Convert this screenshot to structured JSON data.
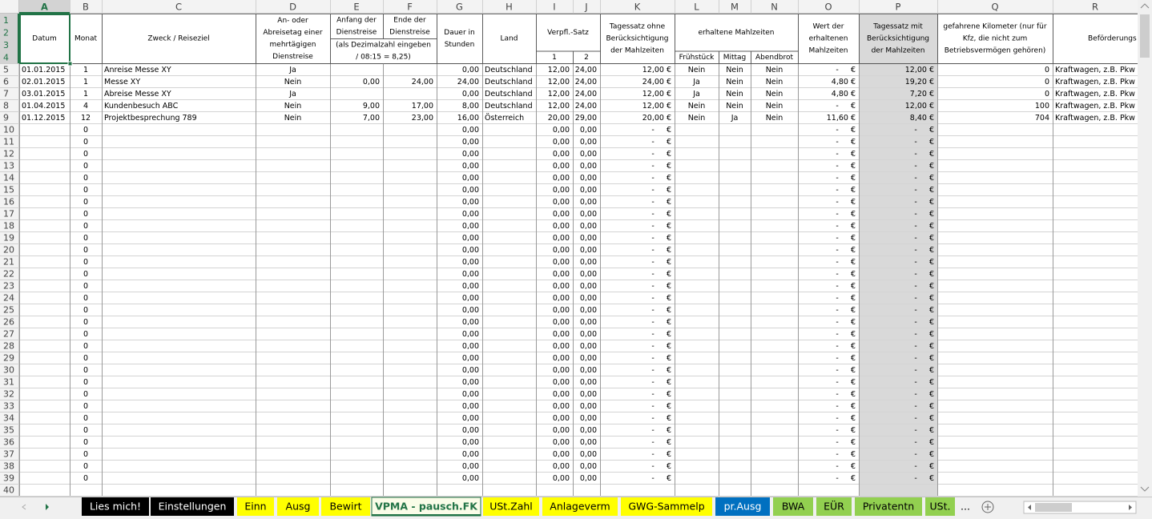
{
  "columns": [
    "A",
    "B",
    "C",
    "D",
    "E",
    "F",
    "G",
    "H",
    "I",
    "J",
    "K",
    "L",
    "M",
    "N",
    "O",
    "P",
    "Q",
    "R"
  ],
  "row_numbers": [
    1,
    2,
    3,
    4,
    5,
    6,
    7,
    8,
    9,
    10,
    11,
    12,
    13,
    14,
    15,
    16,
    17,
    18,
    19,
    20,
    21,
    22,
    23,
    24,
    25,
    26,
    27,
    28,
    29,
    30,
    31,
    32,
    33,
    34,
    35,
    36,
    37,
    38,
    39,
    40
  ],
  "header": {
    "A": [
      "Datum"
    ],
    "B": [
      "Monat"
    ],
    "C": [
      "Zweck / Reiseziel"
    ],
    "D": [
      "An- oder",
      "Abreisetag einer",
      "mehrtägigen",
      "Dienstreise"
    ],
    "E": [
      "Anfang der",
      "Dienstreise"
    ],
    "F": [
      "Ende der",
      "Dienstreise"
    ],
    "EF": [
      "(als Dezimalzahl eingeben",
      "/ 08:15 = 8,25)"
    ],
    "G": [
      "Dauer in",
      "Stunden"
    ],
    "H": [
      "Land"
    ],
    "IJ": [
      "Verpfl.-Satz"
    ],
    "I": [
      "1"
    ],
    "J": [
      "2"
    ],
    "K": [
      "Tagessatz ohne",
      "Berücksichtigung",
      "der Mahlzeiten"
    ],
    "LN": [
      "erhaltene Mahlzeiten"
    ],
    "L": [
      "Frühstück"
    ],
    "M": [
      "Mittag"
    ],
    "N": [
      "Abendbrot"
    ],
    "O": [
      "Wert der",
      "erhaltenen",
      "Mahlzeiten"
    ],
    "P": [
      "Tagessatz mit",
      "Berücksichtigung",
      "der Mahlzeiten"
    ],
    "Q": [
      "gefahrene Kilometer (nur für",
      "Kfz, die nicht zum",
      "Betriebsvermögen gehören)"
    ],
    "R": [
      "Beförderungs"
    ]
  },
  "rows": [
    {
      "A": "01.01.2015",
      "B": "1",
      "C": "Anreise Messe XY",
      "D": "Ja",
      "G": "0,00",
      "H": "Deutschland",
      "I": "12,00",
      "J": "24,00",
      "K": "12,00 €",
      "L": "Nein",
      "M": "Nein",
      "N": "Nein",
      "O": "-     €",
      "P": "12,00 €",
      "Q": "0",
      "R": "Kraftwagen, z.B. Pkw"
    },
    {
      "A": "02.01.2015",
      "B": "1",
      "C": "Messe XY",
      "D": "Nein",
      "E": "0,00",
      "F": "24,00",
      "G": "24,00",
      "H": "Deutschland",
      "I": "12,00",
      "J": "24,00",
      "K": "24,00 €",
      "L": "Ja",
      "M": "Nein",
      "N": "Nein",
      "O": "4,80 €",
      "P": "19,20 €",
      "Q": "0",
      "R": "Kraftwagen, z.B. Pkw"
    },
    {
      "A": "03.01.2015",
      "B": "1",
      "C": "Abreise Messe XY",
      "D": "Ja",
      "G": "0,00",
      "H": "Deutschland",
      "I": "12,00",
      "J": "24,00",
      "K": "12,00 €",
      "L": "Ja",
      "M": "Nein",
      "N": "Nein",
      "O": "4,80 €",
      "P": "7,20 €",
      "Q": "0",
      "R": "Kraftwagen, z.B. Pkw"
    },
    {
      "A": "01.04.2015",
      "B": "4",
      "C": "Kundenbesuch ABC",
      "D": "Nein",
      "E": "9,00",
      "F": "17,00",
      "G": "8,00",
      "H": "Deutschland",
      "I": "12,00",
      "J": "24,00",
      "K": "12,00 €",
      "L": "Nein",
      "M": "Nein",
      "N": "Nein",
      "O": "-     €",
      "P": "12,00 €",
      "Q": "100",
      "R": "Kraftwagen, z.B. Pkw"
    },
    {
      "A": "01.12.2015",
      "B": "12",
      "C": "Projektbesprechung 789",
      "D": "Nein",
      "E": "7,00",
      "F": "23,00",
      "G": "16,00",
      "H": "Österreich",
      "I": "20,00",
      "J": "29,00",
      "K": "20,00 €",
      "L": "Nein",
      "M": "Ja",
      "N": "Nein",
      "O": "11,60 €",
      "P": "8,40 €",
      "Q": "704",
      "R": "Kraftwagen, z.B. Pkw"
    },
    {
      "B": "0",
      "G": "0,00",
      "I": "0,00",
      "J": "0,00",
      "K": "-     €",
      "O": "-     €",
      "P": "-     €"
    },
    {
      "B": "0",
      "G": "0,00",
      "I": "0,00",
      "J": "0,00",
      "K": "-     €",
      "O": "-     €",
      "P": "-     €"
    },
    {
      "B": "0",
      "G": "0,00",
      "I": "0,00",
      "J": "0,00",
      "K": "-     €",
      "O": "-     €",
      "P": "-     €"
    },
    {
      "B": "0",
      "G": "0,00",
      "I": "0,00",
      "J": "0,00",
      "K": "-     €",
      "O": "-     €",
      "P": "-     €"
    },
    {
      "B": "0",
      "G": "0,00",
      "I": "0,00",
      "J": "0,00",
      "K": "-     €",
      "O": "-     €",
      "P": "-     €"
    },
    {
      "B": "0",
      "G": "0,00",
      "I": "0,00",
      "J": "0,00",
      "K": "-     €",
      "O": "-     €",
      "P": "-     €"
    },
    {
      "B": "0",
      "G": "0,00",
      "I": "0,00",
      "J": "0,00",
      "K": "-     €",
      "O": "-     €",
      "P": "-     €"
    },
    {
      "B": "0",
      "G": "0,00",
      "I": "0,00",
      "J": "0,00",
      "K": "-     €",
      "O": "-     €",
      "P": "-     €"
    },
    {
      "B": "0",
      "G": "0,00",
      "I": "0,00",
      "J": "0,00",
      "K": "-     €",
      "O": "-     €",
      "P": "-     €"
    },
    {
      "B": "0",
      "G": "0,00",
      "I": "0,00",
      "J": "0,00",
      "K": "-     €",
      "O": "-     €",
      "P": "-     €"
    },
    {
      "B": "0",
      "G": "0,00",
      "I": "0,00",
      "J": "0,00",
      "K": "-     €",
      "O": "-     €",
      "P": "-     €"
    },
    {
      "B": "0",
      "G": "0,00",
      "I": "0,00",
      "J": "0,00",
      "K": "-     €",
      "O": "-     €",
      "P": "-     €"
    },
    {
      "B": "0",
      "G": "0,00",
      "I": "0,00",
      "J": "0,00",
      "K": "-     €",
      "O": "-     €",
      "P": "-     €"
    },
    {
      "B": "0",
      "G": "0,00",
      "I": "0,00",
      "J": "0,00",
      "K": "-     €",
      "O": "-     €",
      "P": "-     €"
    },
    {
      "B": "0",
      "G": "0,00",
      "I": "0,00",
      "J": "0,00",
      "K": "-     €",
      "O": "-     €",
      "P": "-     €"
    },
    {
      "B": "0",
      "G": "0,00",
      "I": "0,00",
      "J": "0,00",
      "K": "-     €",
      "O": "-     €",
      "P": "-     €"
    },
    {
      "B": "0",
      "G": "0,00",
      "I": "0,00",
      "J": "0,00",
      "K": "-     €",
      "O": "-     €",
      "P": "-     €"
    },
    {
      "B": "0",
      "G": "0,00",
      "I": "0,00",
      "J": "0,00",
      "K": "-     €",
      "O": "-     €",
      "P": "-     €"
    },
    {
      "B": "0",
      "G": "0,00",
      "I": "0,00",
      "J": "0,00",
      "K": "-     €",
      "O": "-     €",
      "P": "-     €"
    },
    {
      "B": "0",
      "G": "0,00",
      "I": "0,00",
      "J": "0,00",
      "K": "-     €",
      "O": "-     €",
      "P": "-     €"
    },
    {
      "B": "0",
      "G": "0,00",
      "I": "0,00",
      "J": "0,00",
      "K": "-     €",
      "O": "-     €",
      "P": "-     €"
    },
    {
      "B": "0",
      "G": "0,00",
      "I": "0,00",
      "J": "0,00",
      "K": "-     €",
      "O": "-     €",
      "P": "-     €"
    },
    {
      "B": "0",
      "G": "0,00",
      "I": "0,00",
      "J": "0,00",
      "K": "-     €",
      "O": "-     €",
      "P": "-     €"
    },
    {
      "B": "0",
      "G": "0,00",
      "I": "0,00",
      "J": "0,00",
      "K": "-     €",
      "O": "-     €",
      "P": "-     €"
    },
    {
      "B": "0",
      "G": "0,00",
      "I": "0,00",
      "J": "0,00",
      "K": "-     €",
      "O": "-     €",
      "P": "-     €"
    },
    {
      "B": "0",
      "G": "0,00",
      "I": "0,00",
      "J": "0,00",
      "K": "-     €",
      "O": "-     €",
      "P": "-     €"
    },
    {
      "B": "0",
      "G": "0,00",
      "I": "0,00",
      "J": "0,00",
      "K": "-     €",
      "O": "-     €",
      "P": "-     €"
    },
    {
      "B": "0",
      "G": "0,00",
      "I": "0,00",
      "J": "0,00",
      "K": "-     €",
      "O": "-     €",
      "P": "-     €"
    },
    {
      "B": "0",
      "G": "0,00",
      "I": "0,00",
      "J": "0,00",
      "K": "-     €",
      "O": "-     €",
      "P": "-     €"
    },
    {
      "B": "0",
      "G": "0,00",
      "I": "0,00",
      "J": "0,00",
      "K": "-     €",
      "O": "-     €",
      "P": "-     €"
    }
  ],
  "tabs": [
    {
      "label": "Lies mich!",
      "bg": "#000000",
      "fg": "#ffffff"
    },
    {
      "label": "Einstellungen",
      "bg": "#000000",
      "fg": "#ffffff"
    },
    {
      "label": "Einn",
      "bg": "#ffff00",
      "fg": "#000000"
    },
    {
      "label": "Ausg",
      "bg": "#ffff00",
      "fg": "#000000"
    },
    {
      "label": "Bewirt",
      "bg": "#ffff00",
      "fg": "#000000"
    },
    {
      "label": "VPMA - pausch.FK",
      "bg": "#fafce8",
      "fg": "#217346",
      "active": true
    },
    {
      "label": "USt.Zahl",
      "bg": "#ffff00",
      "fg": "#000000"
    },
    {
      "label": "Anlageverm",
      "bg": "#ffff00",
      "fg": "#000000"
    },
    {
      "label": "GWG-Sammelp",
      "bg": "#ffff00",
      "fg": "#000000"
    },
    {
      "label": "pr.Ausg",
      "bg": "#0070c0",
      "fg": "#ffffff"
    },
    {
      "label": "BWA",
      "bg": "#92d050",
      "fg": "#000000"
    },
    {
      "label": "EÜR",
      "bg": "#92d050",
      "fg": "#000000"
    },
    {
      "label": "Privatentn",
      "bg": "#92d050",
      "fg": "#000000"
    },
    {
      "label": "USt.",
      "bg": "#92d050",
      "fg": "#000000"
    }
  ],
  "more_tabs": "..."
}
